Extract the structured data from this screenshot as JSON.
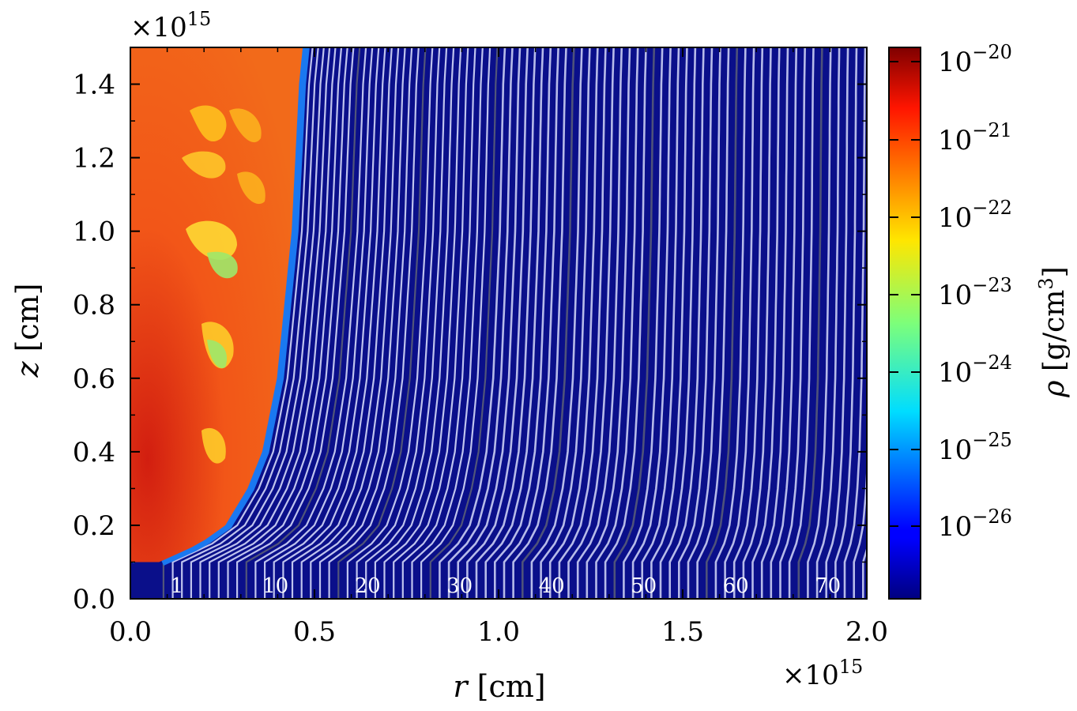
{
  "chart_data": {
    "type": "heatmap",
    "title": "",
    "xlabel_var": "r",
    "xlabel_unit": "[cm]",
    "ylabel_var": "z",
    "ylabel_unit": "[cm]",
    "xlim": [
      0.0,
      2.0
    ],
    "ylim": [
      0.0,
      1.5
    ],
    "x_multiplier": "×10",
    "x_multiplier_exp": "15",
    "y_multiplier": "×10",
    "y_multiplier_exp": "15",
    "xticks": [
      "0.0",
      "0.5",
      "1.0",
      "1.5",
      "2.0"
    ],
    "yticks": [
      "0.0",
      "0.2",
      "0.4",
      "0.6",
      "0.8",
      "1.0",
      "1.2",
      "1.4"
    ],
    "colorbar": {
      "label_var": "ρ",
      "label_unit": "[g/cm",
      "label_unit_exp": "3",
      "label_unit_end": "]",
      "scale": "log",
      "tick_base": "10",
      "tick_exponents": [
        "−20",
        "−21",
        "−22",
        "−23",
        "−24",
        "−25",
        "−26"
      ],
      "colormap": "jet"
    },
    "streamlines": {
      "count": 80,
      "labels": [
        "1",
        "10",
        "20",
        "30",
        "40",
        "50",
        "60",
        "70"
      ],
      "label_positions_x": [
        0.1,
        0.35,
        0.6,
        0.85,
        1.1,
        1.35,
        1.6,
        1.85
      ]
    },
    "jet_boundary": {
      "z": [
        0.1,
        0.15,
        0.2,
        0.3,
        0.4,
        0.6,
        0.8,
        1.0,
        1.2,
        1.4,
        1.5
      ],
      "r": [
        0.09,
        0.2,
        0.27,
        0.33,
        0.37,
        0.41,
        0.43,
        0.45,
        0.46,
        0.47,
        0.48
      ]
    }
  },
  "colors": {
    "background_plasma": "#0a0f8a",
    "jet_core": "#f0501c",
    "jet_edge": "#1a78f0",
    "light_line": "#c9cdf3",
    "dark_line": "#555a78"
  }
}
